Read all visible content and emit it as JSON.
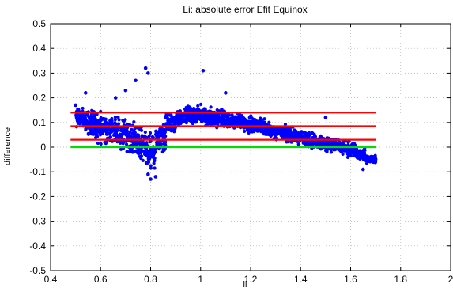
{
  "chart_data": {
    "type": "scatter",
    "title": "Li: absolute error Efit Equinox",
    "xlabel": "li",
    "ylabel": "difference",
    "xlim": [
      0.4,
      2.0
    ],
    "ylim": [
      -0.5,
      0.5
    ],
    "xticks": [
      0.4,
      0.6,
      0.8,
      1.0,
      1.2,
      1.4,
      1.6,
      1.8,
      2.0
    ],
    "xtick_labels": [
      "0.4",
      "0.6",
      "0.8",
      "1",
      "1.2",
      "1.4",
      "1.6",
      "1.8",
      "2"
    ],
    "yticks": [
      -0.5,
      -0.4,
      -0.3,
      -0.2,
      -0.1,
      0,
      0.1,
      0.2,
      0.3,
      0.4,
      0.5
    ],
    "ytick_labels": [
      "-0.5",
      "-0.4",
      "-0.3",
      "-0.2",
      "-0.1",
      "0",
      "0.1",
      "0.2",
      "0.3",
      "0.4",
      "0.5"
    ],
    "grid": true,
    "colors": {
      "points": "#0000ff",
      "red_lines": "#ff0000",
      "green_line": "#00dd00",
      "grid": "#b0b0b0",
      "axes": "#000000"
    },
    "series": [
      {
        "type": "scatter",
        "color": "#0000ff",
        "cloud_center_x": [
          0.52,
          0.56,
          0.6,
          0.64,
          0.68,
          0.72,
          0.76,
          0.8,
          0.84,
          0.88,
          0.92,
          0.96,
          1.0,
          1.04,
          1.08,
          1.12,
          1.16,
          1.2,
          1.24,
          1.28,
          1.32,
          1.36,
          1.4,
          1.44,
          1.48,
          1.52,
          1.56,
          1.6,
          1.64,
          1.68
        ],
        "cloud_center_y": [
          0.12,
          0.1,
          0.08,
          0.07,
          0.06,
          0.04,
          0.01,
          -0.02,
          0.03,
          0.09,
          0.12,
          0.13,
          0.13,
          0.12,
          0.115,
          0.11,
          0.1,
          0.09,
          0.085,
          0.07,
          0.06,
          0.05,
          0.04,
          0.03,
          0.02,
          0.01,
          0.0,
          -0.01,
          -0.03,
          -0.05
        ],
        "cloud_spread_y": [
          0.05,
          0.07,
          0.08,
          0.08,
          0.08,
          0.08,
          0.09,
          0.09,
          0.08,
          0.06,
          0.05,
          0.05,
          0.05,
          0.05,
          0.05,
          0.05,
          0.05,
          0.05,
          0.04,
          0.04,
          0.04,
          0.04,
          0.04,
          0.04,
          0.04,
          0.04,
          0.04,
          0.04,
          0.03,
          0.02
        ],
        "outliers": [
          [
            0.78,
            0.32
          ],
          [
            0.79,
            0.3
          ],
          [
            1.01,
            0.31
          ],
          [
            0.74,
            0.27
          ],
          [
            0.54,
            0.22
          ],
          [
            0.8,
            -0.13
          ],
          [
            0.79,
            -0.11
          ],
          [
            0.82,
            -0.12
          ],
          [
            1.65,
            -0.09
          ],
          [
            1.7,
            -0.05
          ],
          [
            0.7,
            0.23
          ],
          [
            1.1,
            0.22
          ],
          [
            0.66,
            0.2
          ],
          [
            1.5,
            0.12
          ],
          [
            0.5,
            0.17
          ]
        ]
      },
      {
        "type": "hline",
        "y": 0.14,
        "x": [
          0.48,
          1.7
        ],
        "color": "#ff0000"
      },
      {
        "type": "hline",
        "y": 0.085,
        "x": [
          0.48,
          1.7
        ],
        "color": "#ff0000"
      },
      {
        "type": "hline",
        "y": 0.03,
        "x": [
          0.48,
          1.7
        ],
        "color": "#ff0000"
      },
      {
        "type": "hline",
        "y": 0.0,
        "x": [
          0.48,
          1.7
        ],
        "color": "#00dd00"
      }
    ]
  }
}
